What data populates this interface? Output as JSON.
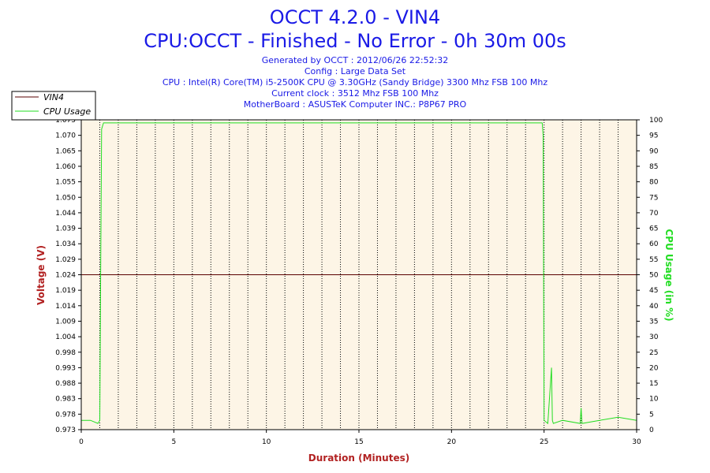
{
  "colors": {
    "title": "#1a1ae6",
    "plot_bg": "#fdf5e6",
    "vin4_line": "#5a0000",
    "cpu_line": "#22dd22",
    "axis_label": "#b22222",
    "cpu_axis_label": "#22dd22",
    "grid": "#000000"
  },
  "header": {
    "title_line1": "OCCT 4.2.0 - VIN4",
    "title_line2": "CPU:OCCT - Finished - No Error - 0h 30m 00s",
    "info": [
      "Generated by OCCT : 2012/06/26 22:52:32",
      "Config : Large Data Set",
      "CPU : Intel(R) Core(TM) i5-2500K CPU @ 3.30GHz (Sandy Bridge) 3300 Mhz FSB 100 Mhz",
      "Current clock : 3512 Mhz FSB 100 Mhz",
      "MotherBoard : ASUSTeK Computer INC.: P8P67 PRO"
    ]
  },
  "chart_data": {
    "type": "line",
    "xlabel": "Duration (Minutes)",
    "ylabel": "Voltage (V)",
    "y2label": "CPU Usage (in %)",
    "xlim": [
      0,
      30
    ],
    "ylim": [
      0.973,
      1.075
    ],
    "y2lim": [
      0,
      100
    ],
    "x_ticks": [
      "0",
      "5",
      "10",
      "15",
      "20",
      "25",
      "30"
    ],
    "y_ticks": [
      "0.973",
      "0.978",
      "0.983",
      "0.988",
      "0.993",
      "0.998",
      "1.004",
      "1.009",
      "1.014",
      "1.019",
      "1.024",
      "1.029",
      "1.034",
      "1.039",
      "1.044",
      "1.050",
      "1.055",
      "1.060",
      "1.065",
      "1.070",
      "1.075"
    ],
    "y2_ticks": [
      "0",
      "5",
      "10",
      "15",
      "20",
      "25",
      "30",
      "35",
      "40",
      "45",
      "50",
      "55",
      "60",
      "65",
      "70",
      "75",
      "80",
      "85",
      "90",
      "95",
      "100"
    ],
    "grid": "vertical dotted at each minute",
    "legend": {
      "position": "top-left",
      "entries": [
        "VIN4",
        "CPU Usage"
      ]
    },
    "series": [
      {
        "name": "VIN4",
        "axis": "left",
        "x": [
          0,
          30
        ],
        "values": [
          1.024,
          1.024
        ]
      },
      {
        "name": "CPU Usage",
        "axis": "right",
        "x": [
          0,
          0.5,
          0.9,
          1.0,
          1.05,
          1.1,
          1.2,
          5,
          10,
          15,
          20,
          24.9,
          24.95,
          25.0,
          25.2,
          25.4,
          25.45,
          25.5,
          26,
          26.95,
          27.0,
          27.05,
          28,
          29,
          30
        ],
        "values": [
          3,
          3,
          2,
          3,
          50,
          97,
          99,
          99,
          99,
          99,
          99,
          99,
          95,
          3,
          2,
          20,
          3,
          2,
          3,
          2,
          7,
          2,
          3,
          4,
          3
        ]
      }
    ]
  }
}
